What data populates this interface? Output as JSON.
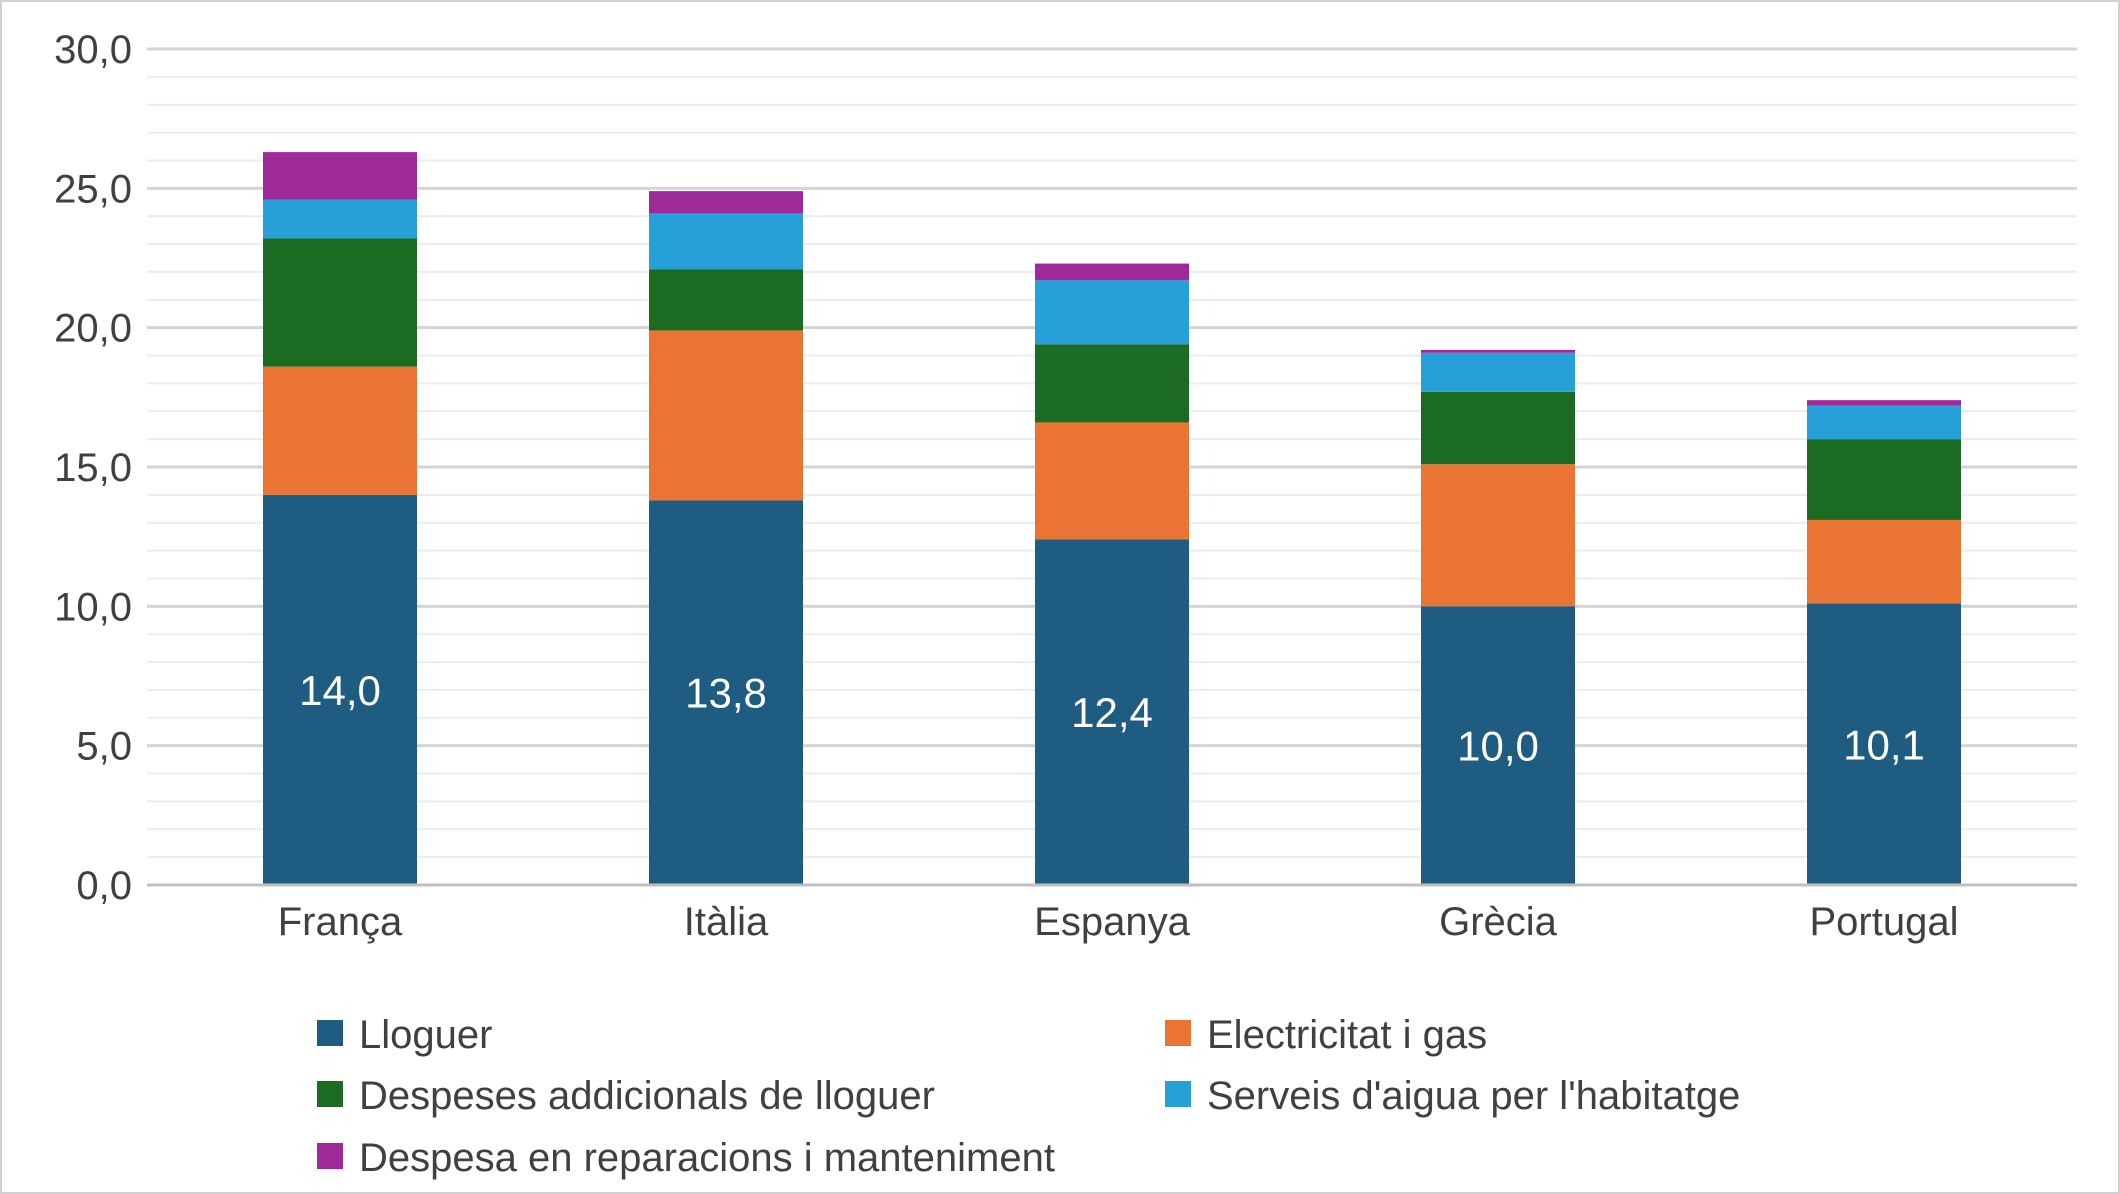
{
  "chart_data": {
    "type": "bar",
    "stacked": true,
    "categories": [
      "França",
      "Itàlia",
      "Espanya",
      "Grècia",
      "Portugal"
    ],
    "ylim": [
      0,
      30
    ],
    "yticks": [
      0,
      5,
      10,
      15,
      20,
      25,
      30
    ],
    "ytick_labels": [
      "0,0",
      "5,0",
      "10,0",
      "15,0",
      "20,0",
      "25,0",
      "30,0"
    ],
    "grid": true,
    "legend_position": "bottom",
    "series": [
      {
        "name": "Lloguer",
        "color": "#1f5c82",
        "values": [
          14.0,
          13.8,
          12.4,
          10.0,
          10.1
        ],
        "data_labels": [
          "14,0",
          "13,8",
          "12,4",
          "10,0",
          "10,1"
        ]
      },
      {
        "name": "Electricitat i gas",
        "color": "#e97434",
        "values": [
          4.6,
          6.1,
          4.2,
          5.1,
          3.0
        ]
      },
      {
        "name": "Despeses addicionals de lloguer",
        "color": "#1b6b23",
        "values": [
          4.6,
          2.2,
          2.8,
          2.6,
          2.9
        ]
      },
      {
        "name": "Serveis d'aigua per l'habitatge",
        "color": "#27a0d8",
        "values": [
          1.4,
          2.0,
          2.3,
          1.4,
          1.2
        ]
      },
      {
        "name": "Despesa en reparacions i manteniment",
        "color": "#a0299a",
        "values": [
          1.7,
          0.8,
          0.6,
          0.1,
          0.2
        ]
      }
    ]
  }
}
